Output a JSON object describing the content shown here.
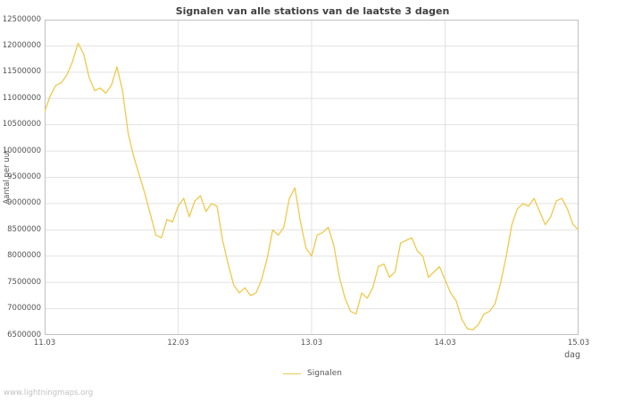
{
  "watermark": "www.lightningmaps.org",
  "chart_data": {
    "type": "line",
    "title": "Signalen van alle stations van de laatste 3 dagen",
    "xlabel": "dag",
    "ylabel": "Aantal per uur",
    "grid": true,
    "legend_position": "bottom-center",
    "frame_color": "#c0c0c0",
    "grid_color": "#e2e2e2",
    "xlim": [
      0,
      4
    ],
    "ylim": [
      6500000,
      12500000
    ],
    "ytick_step": 500000,
    "xticks": [
      {
        "pos": 0,
        "label": "11.03"
      },
      {
        "pos": 1,
        "label": "12.03"
      },
      {
        "pos": 2,
        "label": "13.03"
      },
      {
        "pos": 3,
        "label": "14.03"
      },
      {
        "pos": 4,
        "label": "15.03"
      }
    ],
    "series": [
      {
        "name": "Signalen",
        "color": "#efc94c",
        "x_spacing": "even",
        "values": [
          10750000,
          11050000,
          11250000,
          11300000,
          11450000,
          11700000,
          12050000,
          11850000,
          11400000,
          11150000,
          11200000,
          11100000,
          11250000,
          11600000,
          11150000,
          10350000,
          9900000,
          9550000,
          9200000,
          8800000,
          8400000,
          8350000,
          8700000,
          8650000,
          8950000,
          9100000,
          8750000,
          9050000,
          9150000,
          8850000,
          9000000,
          8950000,
          8300000,
          7850000,
          7450000,
          7300000,
          7400000,
          7250000,
          7300000,
          7550000,
          7950000,
          8500000,
          8400000,
          8550000,
          9100000,
          9300000,
          8650000,
          8150000,
          8000000,
          8400000,
          8450000,
          8550000,
          8200000,
          7600000,
          7200000,
          6950000,
          6900000,
          7300000,
          7200000,
          7400000,
          7800000,
          7850000,
          7600000,
          7700000,
          8250000,
          8300000,
          8350000,
          8100000,
          8000000,
          7600000,
          7700000,
          7800000,
          7550000,
          7300000,
          7150000,
          6800000,
          6620000,
          6600000,
          6700000,
          6900000,
          6950000,
          7100000,
          7500000,
          8000000,
          8600000,
          8900000,
          9000000,
          8950000,
          9100000,
          8850000,
          8600000,
          8750000,
          9050000,
          9100000,
          8900000,
          8600000,
          8500000
        ]
      }
    ]
  }
}
